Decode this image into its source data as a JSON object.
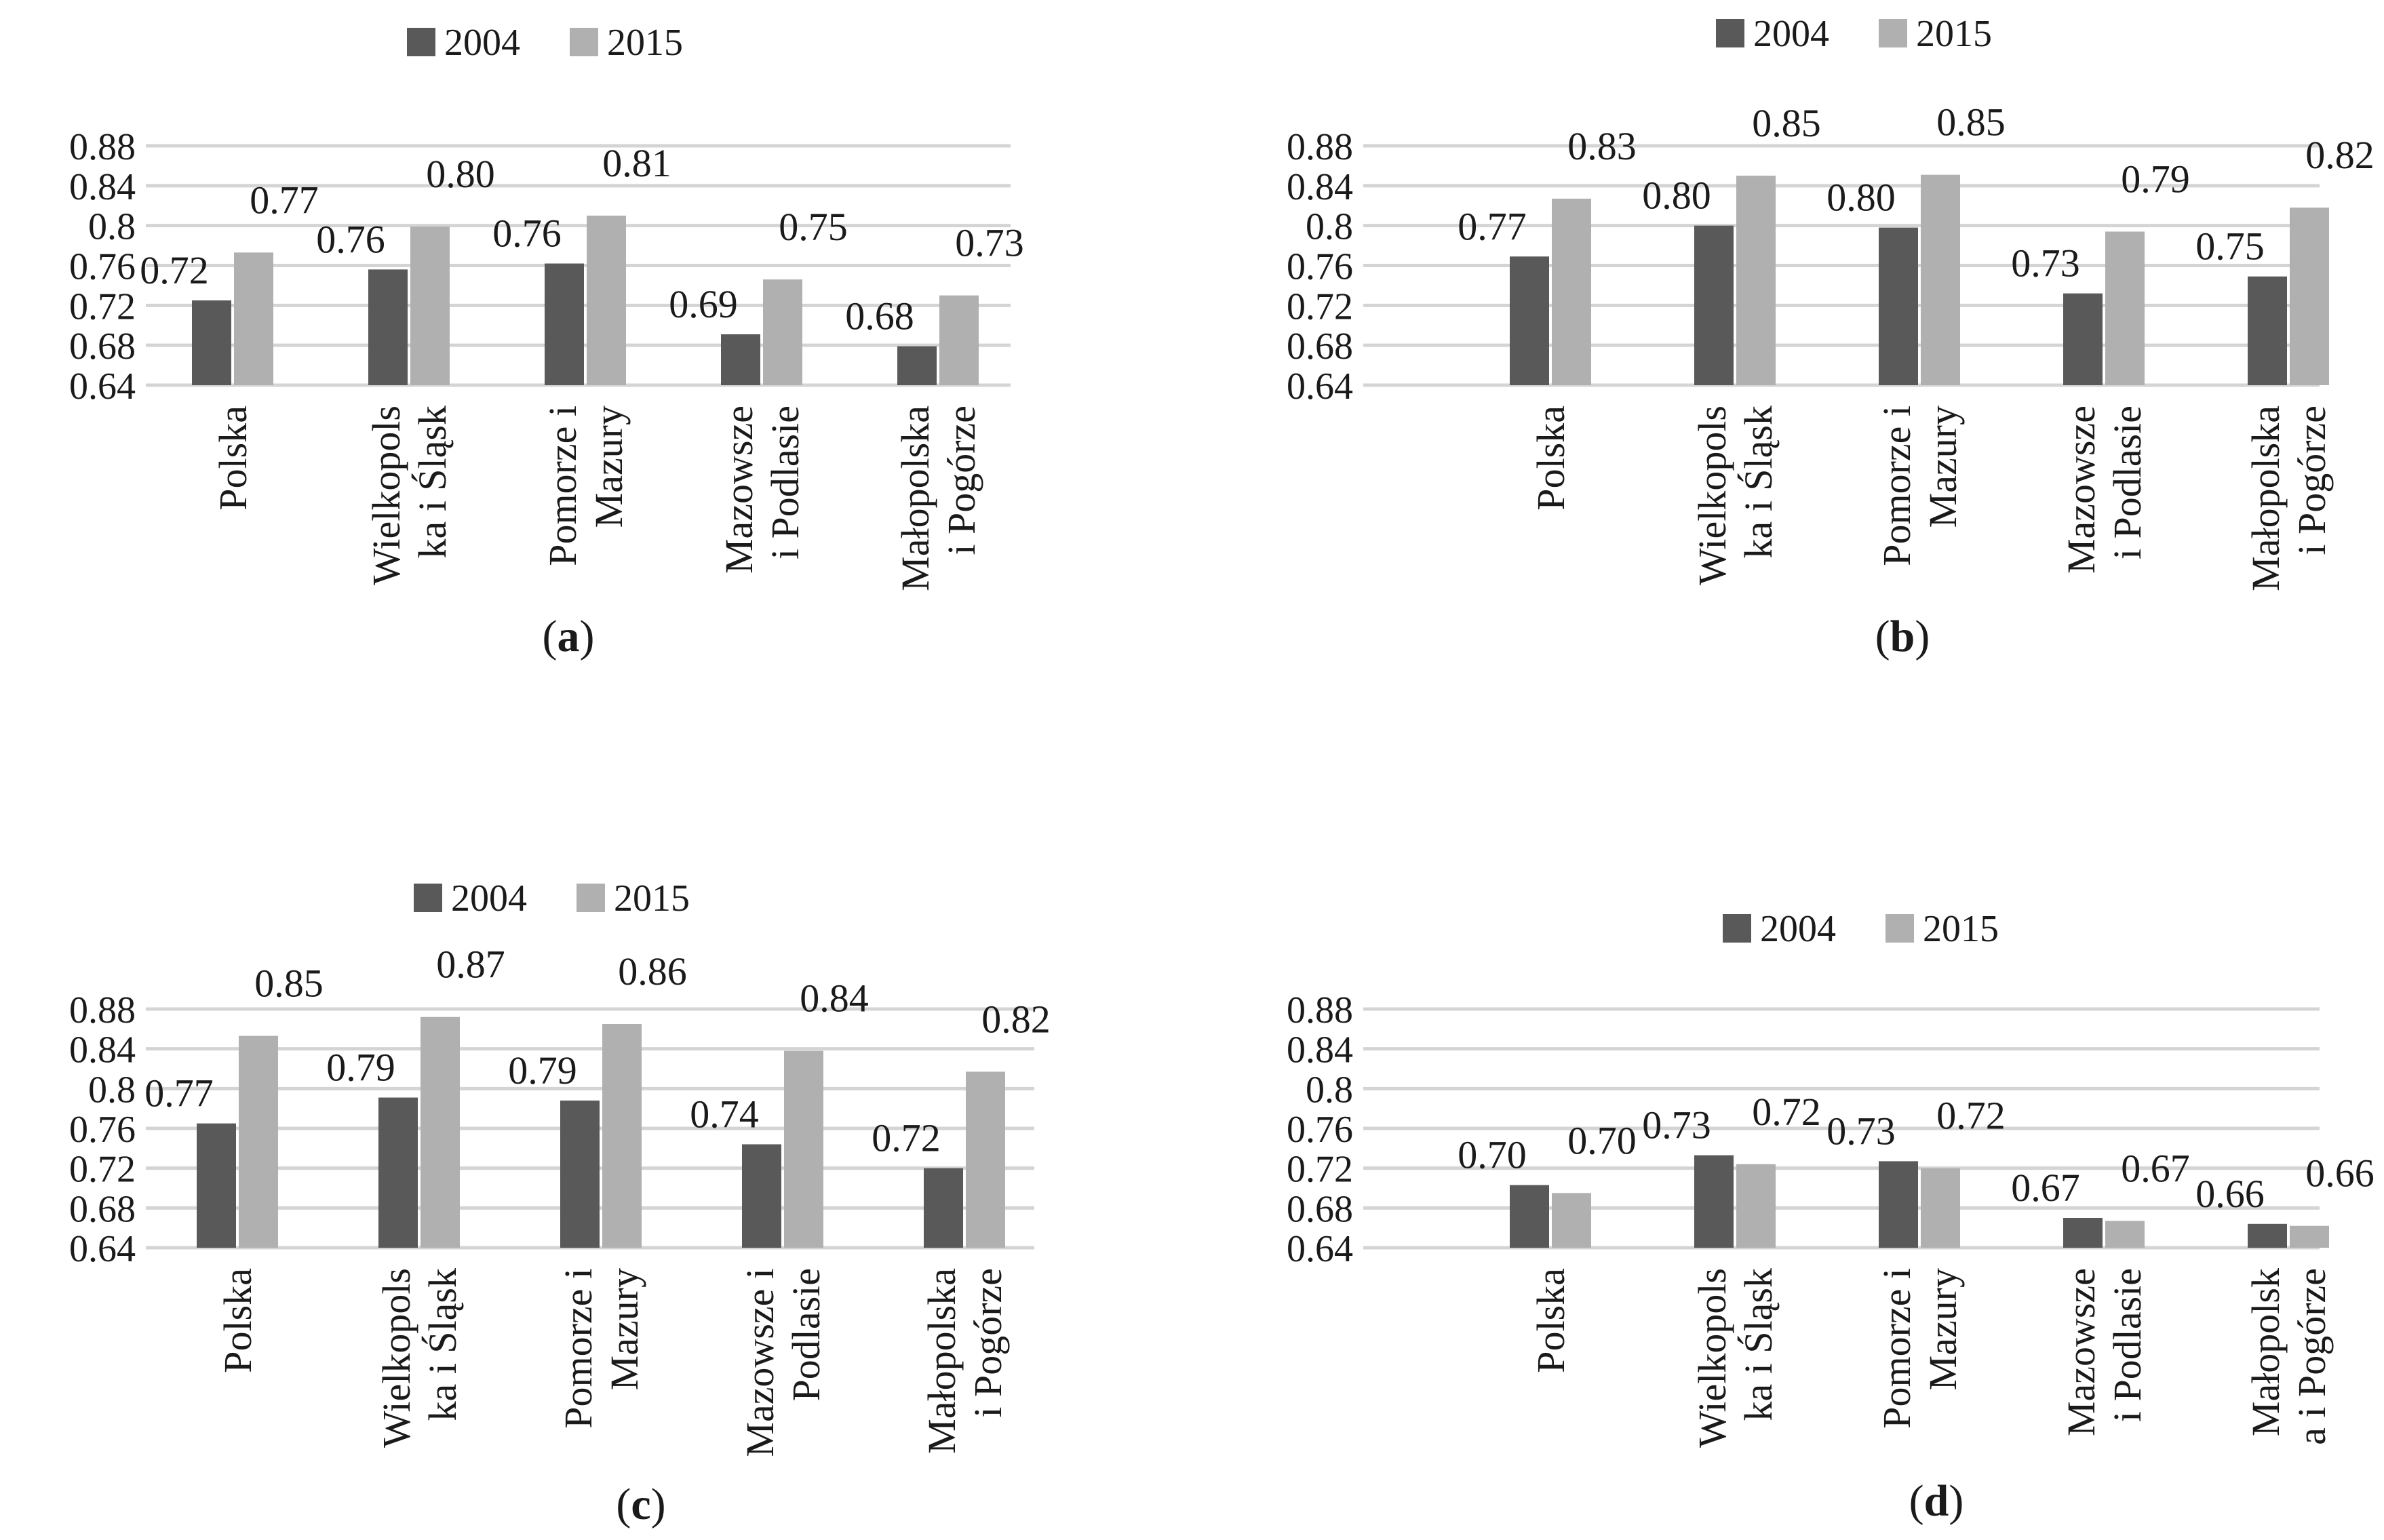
{
  "figure": {
    "legend": {
      "series_a": "2004",
      "series_b": "2015"
    },
    "colors": {
      "series_2004": "#595959",
      "series_2015": "#b0b0b0",
      "grid": "#d4d4d4",
      "text": "#1a1a1a"
    }
  },
  "chart_data": [
    {
      "panel": "a",
      "type": "bar",
      "panel_label": "(a)",
      "categories": [
        [
          "Polska"
        ],
        [
          "Wielkopols",
          "ka i Śląsk"
        ],
        [
          "Pomorze i",
          "Mazury"
        ],
        [
          "Mazowsze",
          "i Podlasie"
        ],
        [
          "Małopolska",
          "i Pogórze"
        ]
      ],
      "series": [
        {
          "name": "2004",
          "values": [
            0.725,
            0.756,
            0.762,
            0.691,
            0.679
          ],
          "labels": [
            "0.72",
            "0.76",
            "0.76",
            "0.69",
            "0.68"
          ]
        },
        {
          "name": "2015",
          "values": [
            0.773,
            0.799,
            0.81,
            0.746,
            0.73
          ],
          "labels": [
            "0.77",
            "0.80",
            "0.81",
            "0.75",
            "0.73"
          ]
        }
      ],
      "ylim": [
        0.64,
        0.88
      ],
      "yticks": [
        "0.64",
        "0.68",
        "0.72",
        "0.76",
        "0.8",
        "0.84",
        "0.88"
      ],
      "ytick_values": [
        0.64,
        0.68,
        0.72,
        0.76,
        0.8,
        0.84,
        0.88
      ],
      "legend_position": "top-center",
      "grid": true
    },
    {
      "panel": "b",
      "type": "bar",
      "panel_label": "(b)",
      "categories": [
        [
          "Polska"
        ],
        [
          "Wielkopols",
          "ka i Śląsk"
        ],
        [
          "Pomorze i",
          "Mazury"
        ],
        [
          "Mazowsze",
          "i Podlasie"
        ],
        [
          "Małopolska",
          "i Pogórze"
        ]
      ],
      "series": [
        {
          "name": "2004",
          "values": [
            0.769,
            0.8,
            0.798,
            0.732,
            0.749
          ],
          "labels": [
            "0.77",
            "0.80",
            "0.80",
            "0.73",
            "0.75"
          ]
        },
        {
          "name": "2015",
          "values": [
            0.827,
            0.85,
            0.851,
            0.794,
            0.818
          ],
          "labels": [
            "0.83",
            "0.85",
            "0.85",
            "0.79",
            "0.82"
          ]
        }
      ],
      "ylim": [
        0.64,
        0.88
      ],
      "yticks": [
        "0.64",
        "0.68",
        "0.72",
        "0.76",
        "0.8",
        "0.84",
        "0.88"
      ],
      "ytick_values": [
        0.64,
        0.68,
        0.72,
        0.76,
        0.8,
        0.84,
        0.88
      ],
      "legend_position": "top-center",
      "grid": true
    },
    {
      "panel": "c",
      "type": "bar",
      "panel_label": "(c)",
      "categories": [
        [
          "Polska"
        ],
        [
          "Wielkopols",
          "ka i Śląsk"
        ],
        [
          "Pomorze i",
          "Mazury"
        ],
        [
          "Mazowsze i",
          "Podlasie"
        ],
        [
          "Małopolska",
          "i Pogórze"
        ]
      ],
      "series": [
        {
          "name": "2004",
          "values": [
            0.765,
            0.791,
            0.788,
            0.744,
            0.72
          ],
          "labels": [
            "0.77",
            "0.79",
            "0.79",
            "0.74",
            "0.72"
          ]
        },
        {
          "name": "2015",
          "values": [
            0.853,
            0.872,
            0.865,
            0.838,
            0.817
          ],
          "labels": [
            "0.85",
            "0.87",
            "0.86",
            "0.84",
            "0.82"
          ]
        }
      ],
      "ylim": [
        0.64,
        0.88
      ],
      "yticks": [
        "0.64",
        "0.68",
        "0.72",
        "0.76",
        "0.8",
        "0.84",
        "0.88"
      ],
      "ytick_values": [
        0.64,
        0.68,
        0.72,
        0.76,
        0.8,
        0.84,
        0.88
      ],
      "legend_position": "top-center",
      "grid": true
    },
    {
      "panel": "d",
      "type": "bar",
      "panel_label": "(d)",
      "categories": [
        [
          "Polska"
        ],
        [
          "Wielkopols",
          "ka i Śląsk"
        ],
        [
          "Pomorze i",
          "Mazury"
        ],
        [
          "Mazowsze",
          "i Podlasie"
        ],
        [
          "Małopolsk",
          "a i Pogórze"
        ]
      ],
      "series": [
        {
          "name": "2004",
          "values": [
            0.703,
            0.733,
            0.727,
            0.67,
            0.664
          ],
          "labels": [
            "0.70",
            "0.73",
            "0.73",
            "0.67",
            "0.66"
          ]
        },
        {
          "name": "2015",
          "values": [
            0.695,
            0.724,
            0.72,
            0.667,
            0.662
          ],
          "labels": [
            "0.70",
            "0.72",
            "0.72",
            "0.67",
            "0.66"
          ]
        }
      ],
      "ylim": [
        0.64,
        0.88
      ],
      "yticks": [
        "0.64",
        "0.68",
        "0.72",
        "0.76",
        "0.8",
        "0.84",
        "0.88"
      ],
      "ytick_values": [
        0.64,
        0.68,
        0.72,
        0.76,
        0.8,
        0.84,
        0.88
      ],
      "legend_position": "top-center",
      "grid": true
    }
  ]
}
